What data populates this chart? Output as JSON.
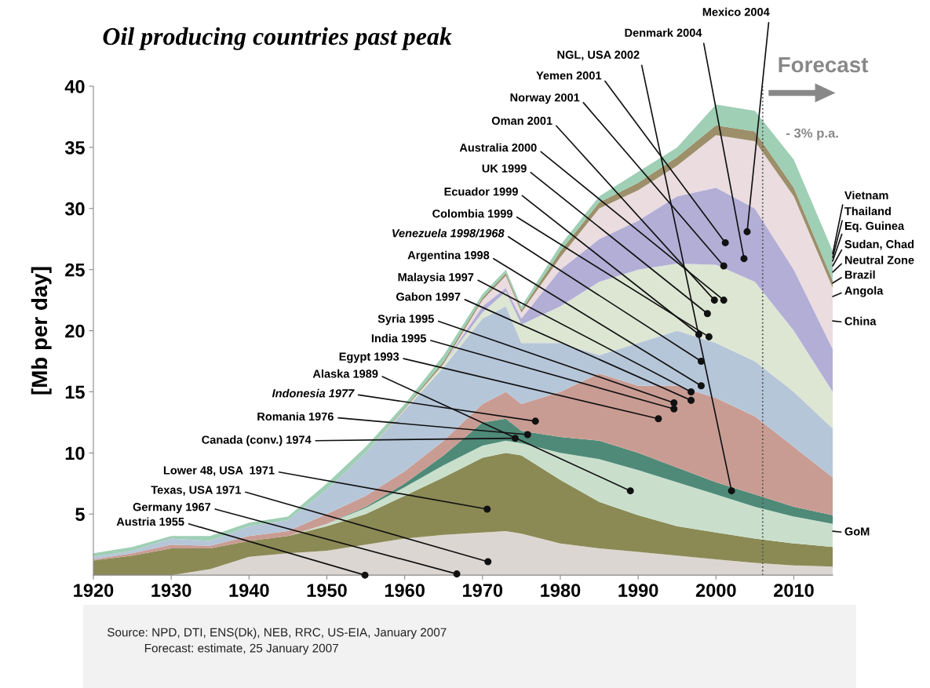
{
  "chart_data": {
    "type": "area",
    "stacked": true,
    "title": "Oil producing countries past peak",
    "ylabel": "[Mb per day]",
    "x": [
      1920,
      1925,
      1930,
      1935,
      1940,
      1945,
      1950,
      1955,
      1960,
      1965,
      1970,
      1973,
      1975,
      1980,
      1985,
      1990,
      1995,
      2000,
      2005,
      2010,
      2015
    ],
    "xlim": [
      1920,
      2015
    ],
    "xticks": [
      1920,
      1930,
      1940,
      1950,
      1960,
      1970,
      1980,
      1990,
      2000,
      2010
    ],
    "ylim": [
      0,
      40
    ],
    "yticks": [
      5,
      10,
      15,
      20,
      25,
      30,
      35,
      40
    ],
    "grid": false,
    "legend": false,
    "series": [
      {
        "color": "#dcd6d2",
        "values": [
          0,
          0,
          0,
          0.5,
          1.5,
          1.8,
          2,
          2.5,
          3,
          3.3,
          3.5,
          3.6,
          3.4,
          2.6,
          2.2,
          1.9,
          1.6,
          1.3,
          1.0,
          0.8,
          0.7
        ]
      },
      {
        "color": "#8b8a55",
        "values": [
          1.2,
          1.6,
          2.2,
          1.7,
          1.3,
          1.4,
          2.0,
          2.5,
          3.5,
          4.7,
          6.1,
          6.4,
          6.4,
          5.2,
          3.8,
          3.0,
          2.4,
          2.2,
          2.0,
          1.8,
          1.6
        ]
      },
      {
        "color": "#c9dfcc",
        "values": [
          0,
          0,
          0,
          0,
          0,
          0,
          0.2,
          0.5,
          0.7,
          1.0,
          1.0,
          1.0,
          1.0,
          2.2,
          3.5,
          3.7,
          3.6,
          3.1,
          2.6,
          2.2,
          1.9
        ]
      },
      {
        "color": "#4f8a78",
        "values": [
          0,
          0,
          0,
          0,
          0,
          0,
          0,
          0.1,
          0.3,
          0.8,
          1.9,
          1.8,
          1.0,
          1.3,
          1.5,
          1.4,
          1.2,
          1.0,
          1.0,
          0.8,
          0.7
        ]
      },
      {
        "color": "#c99c93",
        "values": [
          0.1,
          0.2,
          0.3,
          0.2,
          0.4,
          0.4,
          0.8,
          0.9,
          1.0,
          1.2,
          1.5,
          2.2,
          2.2,
          3.7,
          5.5,
          5.5,
          6.7,
          6.9,
          6.4,
          4.9,
          3.1
        ]
      },
      {
        "color": "#b6c6d9",
        "values": [
          0.2,
          0.2,
          0.5,
          0.4,
          0.8,
          0.9,
          2.0,
          3.5,
          5.0,
          6.0,
          7.0,
          7.0,
          5.0,
          4.0,
          1.5,
          3.5,
          4.5,
          4.5,
          4.5,
          4.5,
          4.0
        ]
      },
      {
        "color": "#dde6d3",
        "values": [
          0,
          0,
          0,
          0,
          0,
          0,
          0,
          0,
          0.1,
          0.3,
          0.5,
          1.2,
          1.5,
          3.0,
          6.0,
          6.0,
          5.5,
          6.4,
          6.5,
          5.0,
          3.0
        ]
      },
      {
        "color": "#b3aed6",
        "values": [
          0,
          0,
          0,
          0,
          0,
          0,
          0,
          0,
          0,
          0,
          0.5,
          0.3,
          0.5,
          3.0,
          3.5,
          4.0,
          5.5,
          6.3,
          6.0,
          5.0,
          3.5
        ]
      },
      {
        "color": "#eadcdf",
        "values": [
          0,
          0,
          0,
          0,
          0,
          0,
          0,
          0,
          0,
          0,
          0.5,
          1.0,
          0.5,
          1.0,
          2.5,
          2.5,
          2.5,
          4.3,
          5.5,
          6.0,
          5.0
        ]
      },
      {
        "color": "#9c8f6a",
        "values": [
          0,
          0,
          0,
          0,
          0,
          0,
          0,
          0,
          0.1,
          0.2,
          0.2,
          0.2,
          0.2,
          0.5,
          0.5,
          0.6,
          0.7,
          0.8,
          0.8,
          0.7,
          0.6
        ]
      },
      {
        "color": "#9fcfb5",
        "values": [
          0.3,
          0.3,
          0.2,
          0.4,
          0.3,
          0.3,
          0.5,
          0.5,
          0.3,
          0.5,
          0.3,
          0.3,
          0.3,
          0.5,
          0.5,
          0.9,
          0.8,
          1.7,
          1.7,
          2.3,
          2.4
        ]
      }
    ],
    "ref_lines": [
      {
        "axis": "x",
        "value": 2006,
        "color": "#555555",
        "line_style": "dotted"
      }
    ],
    "annotations": [
      {
        "text": "Mexico 2004",
        "x": 2004,
        "y": 28.1
      },
      {
        "text": "Denmark 2004",
        "x": 2003.6,
        "y": 25.9
      },
      {
        "text": "NGL, USA 2002",
        "x": 2002,
        "y": 6.9
      },
      {
        "text": "Yemen 2001",
        "x": 2001.2,
        "y": 27.2
      },
      {
        "text": "Norway 2001",
        "x": 2001,
        "y": 25.3
      },
      {
        "text": "Oman 2001",
        "x": 1999.8,
        "y": 22.5
      },
      {
        "text": "Australia 2000",
        "x": 2001,
        "y": 22.5
      },
      {
        "text": "UK 1999",
        "x": 1998.9,
        "y": 21.4
      },
      {
        "text": "Ecuador 1999",
        "x": 1997.8,
        "y": 19.7
      },
      {
        "text": "Colombia 1999",
        "x": 1999.1,
        "y": 19.5
      },
      {
        "text": "Venezuela 1998/1968",
        "x": 1998.1,
        "y": 17.5
      },
      {
        "text": "Argentina 1998",
        "x": 1998.1,
        "y": 15.5
      },
      {
        "text": "Malaysia 1997",
        "x": 1996.8,
        "y": 15.0
      },
      {
        "text": "Gabon 1997",
        "x": 1996.8,
        "y": 14.3
      },
      {
        "text": "Syria 1995",
        "x": 1994.6,
        "y": 14.1
      },
      {
        "text": "India 1995",
        "x": 1994.6,
        "y": 13.6
      },
      {
        "text": "Egypt 1993",
        "x": 1992.6,
        "y": 12.8
      },
      {
        "text": "Alaska 1989",
        "x": 1989,
        "y": 6.9
      },
      {
        "text": "Indonesia 1977",
        "x": 1976.8,
        "y": 12.6
      },
      {
        "text": "Romania 1976",
        "x": 1975.8,
        "y": 11.5
      },
      {
        "text": "Canada (conv.) 1974",
        "x": 1974.2,
        "y": 11.2
      },
      {
        "text": "Lower 48, USA  1971",
        "x": 1970.6,
        "y": 5.4
      },
      {
        "text": "Texas, USA 1971",
        "x": 1970.7,
        "y": 1.1
      },
      {
        "text": "Germany 1967",
        "x": 1966.7,
        "y": 0.1
      },
      {
        "text": "Austria 1955",
        "x": 1954.9,
        "y": 0
      },
      {
        "text": "Vietnam",
        "x": 2015,
        "y": 26.3
      },
      {
        "text": "Thailand",
        "x": 2015,
        "y": 26.0
      },
      {
        "text": "Eq. Guinea",
        "x": 2015,
        "y": 25.7
      },
      {
        "text": "Sudan, Chad",
        "x": 2015,
        "y": 25.3
      },
      {
        "text": "Neutral Zone",
        "x": 2015,
        "y": 24.8
      },
      {
        "text": "Brazil",
        "x": 2015,
        "y": 23.9
      },
      {
        "text": "Angola",
        "x": 2015,
        "y": 22.8
      },
      {
        "text": "China",
        "x": 2015,
        "y": 20.8
      },
      {
        "text": "GoM",
        "x": 2015,
        "y": 3.6
      },
      "Forecast",
      "- 3% p.a.",
      "Source: NPD, DTI, ENS(Dk), NEB, RRC, US-EIA, January 2007",
      "Forecast: estimate, 25 January 2007"
    ]
  }
}
